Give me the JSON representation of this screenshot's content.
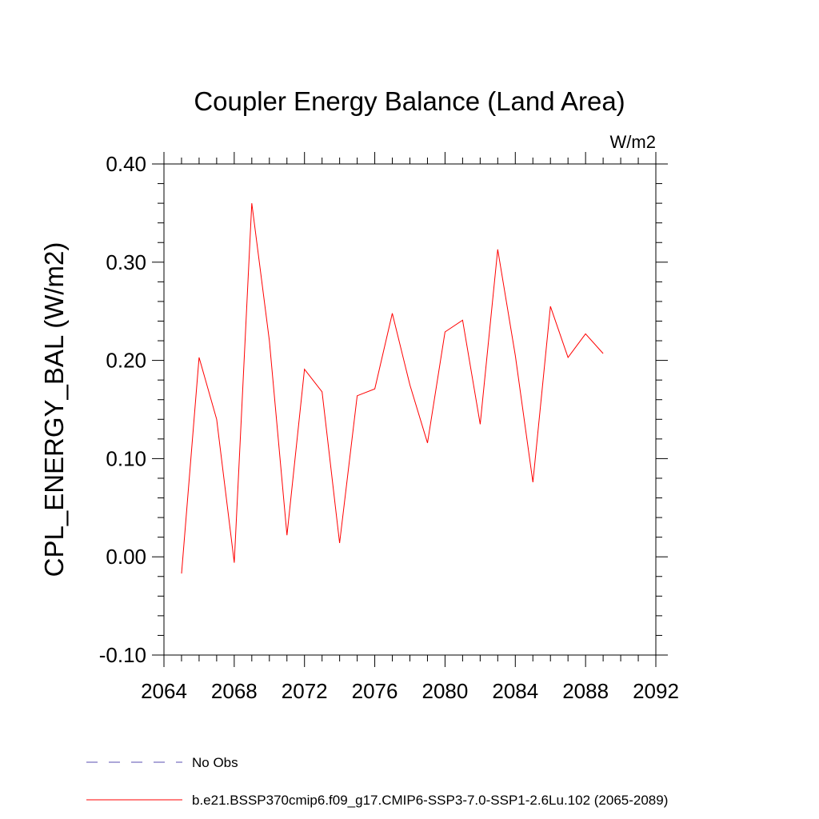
{
  "chart_data": {
    "type": "line",
    "title": "Coupler Energy Balance (Land Area)",
    "units": "W/m2",
    "xlabel": "",
    "ylabel": "CPL_ENERGY_BAL  (W/m2)",
    "xlim": [
      2064,
      2092
    ],
    "ylim": [
      -0.1,
      0.4
    ],
    "xticks": [
      "2064",
      "2068",
      "2072",
      "2076",
      "2080",
      "2084",
      "2088",
      "2092"
    ],
    "yticks": [
      "-0.10",
      "0.00",
      "0.10",
      "0.20",
      "0.30",
      "0.40"
    ],
    "grid": false,
    "legend_position": "bottom-left",
    "series": [
      {
        "name": "b.e21.BSSP370cmip6.f09_g17.CMIP6-SSP3-7.0-SSP1-2.6Lu.102 (2065-2089)",
        "color": "#ff0000",
        "x": [
          2065,
          2066,
          2067,
          2068,
          2069,
          2070,
          2071,
          2072,
          2073,
          2074,
          2075,
          2076,
          2077,
          2078,
          2079,
          2080,
          2081,
          2082,
          2083,
          2084,
          2085,
          2086,
          2087,
          2088,
          2089
        ],
        "values": [
          -0.017,
          0.203,
          0.14,
          -0.006,
          0.36,
          0.22,
          0.022,
          0.191,
          0.168,
          0.014,
          0.164,
          0.171,
          0.248,
          0.175,
          0.116,
          0.229,
          0.241,
          0.135,
          0.313,
          0.205,
          0.076,
          0.255,
          0.203,
          0.227,
          0.207
        ]
      }
    ],
    "legend": [
      {
        "label": "No Obs",
        "color": "#5a4fb0",
        "style": "dashed"
      },
      {
        "label": "b.e21.BSSP370cmip6.f09_g17.CMIP6-SSP3-7.0-SSP1-2.6Lu.102 (2065-2089)",
        "color": "#ff0000",
        "style": "solid"
      }
    ]
  }
}
